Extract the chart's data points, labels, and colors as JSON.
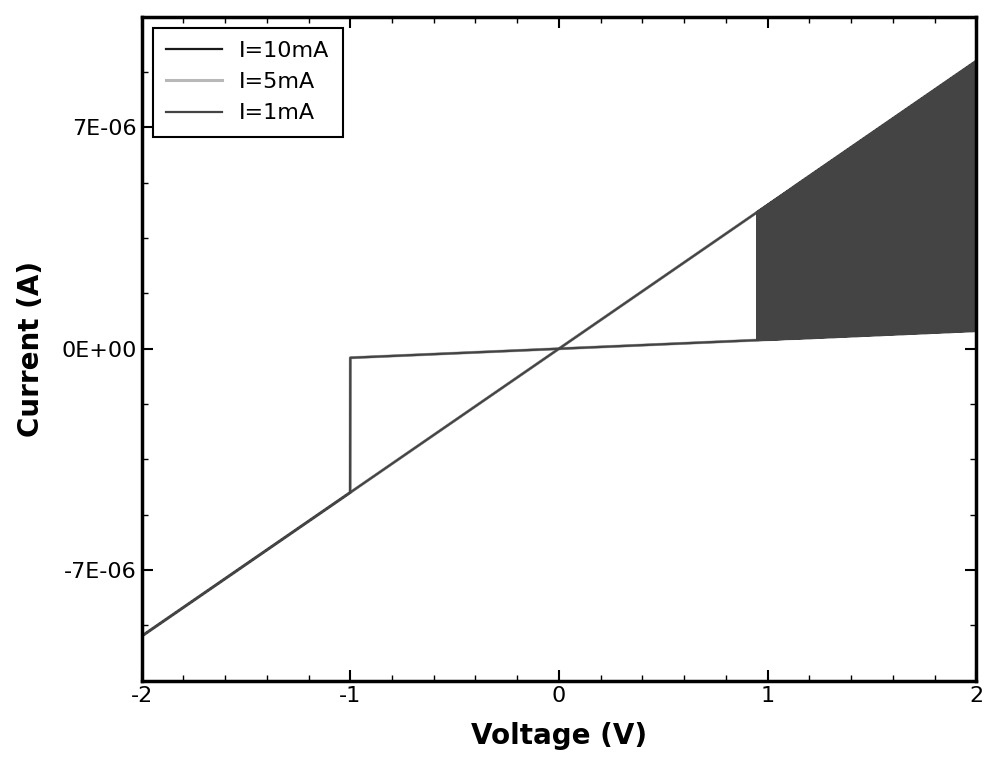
{
  "title": "",
  "xlabel": "Voltage (V)",
  "ylabel": "Current (A)",
  "xlim": [
    -2,
    2
  ],
  "ylim": [
    -1.05e-05,
    1.05e-05
  ],
  "legend_entries": [
    "I=10mA",
    "I=5mA",
    "I=1mA"
  ],
  "colors": [
    "#1a1a1a",
    "#b0b0b0",
    "#555555"
  ],
  "linewidths": [
    1.6,
    2.2,
    1.6
  ],
  "background_color": "#ffffff",
  "yticks": [
    -7e-06,
    0,
    7e-06
  ],
  "ytick_labels": [
    "-7E-06",
    "0E+00",
    "7E-06"
  ],
  "xticks": [
    -2,
    -1,
    0,
    1,
    2
  ],
  "ron": 220000,
  "roff": 3500000,
  "curves": [
    {
      "compliance": 9.1e-06,
      "reset_v": -1.0,
      "set_v": 1.28,
      "color": "#1a1a1a",
      "lw": 1.6,
      "label": "I=10mA"
    },
    {
      "compliance": 9.1e-06,
      "reset_v": -1.0,
      "set_v": 1.12,
      "color": "#b8b8b8",
      "lw": 2.2,
      "label": "I=5mA"
    },
    {
      "compliance": 9.1e-06,
      "reset_v": -1.0,
      "set_v": 0.95,
      "color": "#444444",
      "lw": 1.6,
      "label": "I=1mA"
    }
  ]
}
